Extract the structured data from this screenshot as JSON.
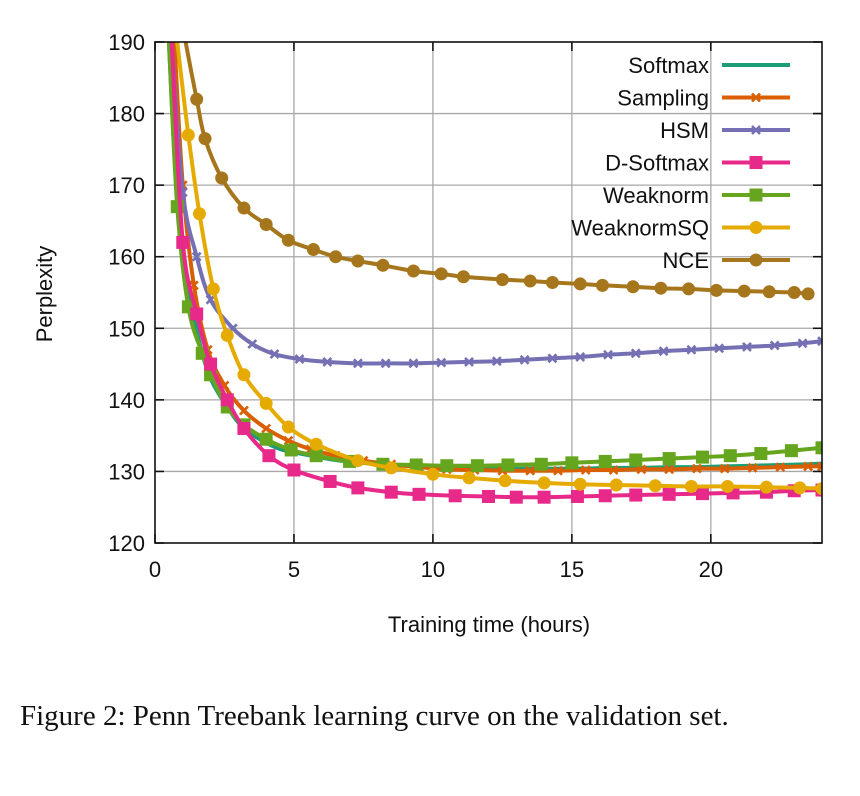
{
  "chart_data": {
    "type": "line",
    "title": "",
    "xlabel": "Training time (hours)",
    "ylabel": "Perplexity",
    "xlim": [
      0,
      24
    ],
    "ylim": [
      120,
      190
    ],
    "xticks": [
      0,
      5,
      10,
      15,
      20
    ],
    "yticks": [
      120,
      130,
      140,
      150,
      160,
      170,
      180,
      190
    ],
    "grid": true,
    "legend_position": "top-right",
    "series": [
      {
        "name": "Softmax",
        "color": "#1b9e77",
        "marker": "none",
        "x": [
          0.5,
          0.8,
          1.2,
          1.6,
          2.0,
          2.6,
          3.2,
          4.0,
          4.6,
          5.5,
          6.5,
          7.5,
          8.5,
          9.5,
          10.5,
          11.5,
          12.5,
          13.5,
          14.5,
          15.5,
          16.5,
          17.5,
          18.5,
          19.5,
          20.5,
          21.5,
          22.5,
          23.5,
          24
        ],
        "y": [
          190,
          168,
          156,
          148,
          143,
          139,
          136,
          134,
          133,
          132.3,
          131.6,
          131.2,
          130.9,
          130.7,
          130.6,
          130.5,
          130.4,
          130.4,
          130.4,
          130.4,
          130.5,
          130.5,
          130.6,
          130.6,
          130.7,
          130.8,
          130.9,
          131.0,
          131.1
        ]
      },
      {
        "name": "Sampling",
        "color": "#d95f02",
        "marker": "x",
        "x": [
          0.7,
          1.0,
          1.4,
          1.9,
          2.5,
          3.2,
          4.0,
          4.8,
          5.6,
          6.5,
          7.5,
          8.5,
          9.5,
          10.5,
          11.5,
          12.5,
          13.5,
          14.5,
          15.5,
          16.5,
          17.5,
          18.5,
          19.5,
          20.5,
          21.5,
          22.5,
          23.5,
          24
        ],
        "y": [
          190,
          170,
          156,
          147,
          142,
          138.5,
          136,
          134.3,
          133.1,
          132.2,
          131.5,
          131.0,
          130.6,
          130.3,
          130.2,
          130.1,
          130.1,
          130.1,
          130.2,
          130.2,
          130.3,
          130.3,
          130.4,
          130.4,
          130.5,
          130.6,
          130.7,
          130.7
        ]
      },
      {
        "name": "HSM",
        "color": "#7570b3",
        "marker": "x",
        "x": [
          0.6,
          1.0,
          1.5,
          2.0,
          2.8,
          3.5,
          4.3,
          5.2,
          6.2,
          7.3,
          8.3,
          9.3,
          10.3,
          11.3,
          12.3,
          13.3,
          14.3,
          15.3,
          16.3,
          17.3,
          18.3,
          19.3,
          20.3,
          21.3,
          22.3,
          23.3,
          24
        ],
        "y": [
          190,
          169,
          160,
          154,
          150,
          147.8,
          146.4,
          145.7,
          145.3,
          145.1,
          145.1,
          145.1,
          145.2,
          145.3,
          145.4,
          145.6,
          145.8,
          146.0,
          146.3,
          146.5,
          146.8,
          147.0,
          147.2,
          147.4,
          147.6,
          147.9,
          148.2
        ]
      },
      {
        "name": "D-Softmax",
        "color": "#e7298a",
        "marker": "square",
        "x": [
          0.6,
          1.0,
          1.5,
          2.0,
          2.6,
          3.2,
          4.1,
          5.0,
          6.3,
          7.3,
          8.5,
          9.5,
          10.8,
          12.0,
          13.0,
          14.0,
          15.2,
          16.2,
          17.3,
          18.5,
          19.7,
          20.8,
          22.0,
          23.0,
          24
        ],
        "y": [
          190,
          162,
          152,
          145,
          140,
          136,
          132.2,
          130.2,
          128.6,
          127.7,
          127.1,
          126.8,
          126.6,
          126.5,
          126.4,
          126.4,
          126.5,
          126.6,
          126.7,
          126.8,
          126.9,
          127.0,
          127.1,
          127.3,
          127.4
        ]
      },
      {
        "name": "Weaknorm",
        "color": "#66a61e",
        "marker": "square",
        "x": [
          0.5,
          0.8,
          1.2,
          1.7,
          2.0,
          2.6,
          3.2,
          4.0,
          4.9,
          5.8,
          7.0,
          8.2,
          9.4,
          10.5,
          11.6,
          12.7,
          13.9,
          15.0,
          16.2,
          17.3,
          18.5,
          19.7,
          20.7,
          21.8,
          22.9,
          24
        ],
        "y": [
          190,
          167,
          153,
          146.5,
          143.5,
          139,
          136.5,
          134.5,
          133.0,
          132.2,
          131.4,
          131.0,
          130.9,
          130.8,
          130.8,
          130.9,
          131.0,
          131.2,
          131.4,
          131.6,
          131.8,
          132.0,
          132.2,
          132.5,
          132.9,
          133.3
        ]
      },
      {
        "name": "WeaknormSQ",
        "color": "#e6ab02",
        "marker": "circle",
        "x": [
          0.8,
          1.2,
          1.6,
          2.1,
          2.6,
          3.2,
          4.0,
          4.8,
          5.8,
          7.3,
          8.5,
          10.0,
          11.3,
          12.6,
          14.0,
          15.3,
          16.6,
          18.0,
          19.3,
          20.6,
          22.0,
          23.2,
          24
        ],
        "y": [
          190,
          177,
          166,
          155.5,
          149,
          143.5,
          139.5,
          136.2,
          133.8,
          131.5,
          130.5,
          129.6,
          129.1,
          128.7,
          128.4,
          128.2,
          128.1,
          128.0,
          127.9,
          127.9,
          127.8,
          127.7,
          127.6
        ]
      },
      {
        "name": "NCE",
        "color": "#a6761d",
        "marker": "circle",
        "x": [
          1.1,
          1.5,
          1.8,
          2.4,
          3.2,
          4.0,
          4.8,
          5.7,
          6.5,
          7.3,
          8.2,
          9.3,
          10.3,
          11.1,
          12.5,
          13.5,
          14.3,
          15.3,
          16.1,
          17.2,
          18.2,
          19.2,
          20.2,
          21.2,
          22.1,
          23.0,
          23.5
        ],
        "y": [
          190,
          182,
          176.5,
          171,
          166.8,
          164.5,
          162.3,
          161.0,
          160.0,
          159.4,
          158.8,
          158.0,
          157.6,
          157.2,
          156.8,
          156.6,
          156.4,
          156.2,
          156.0,
          155.8,
          155.6,
          155.5,
          155.3,
          155.2,
          155.1,
          155.0,
          154.8
        ]
      }
    ]
  },
  "caption": {
    "text": "Figure 2: Penn Treebank learning curve on the validation set."
  }
}
